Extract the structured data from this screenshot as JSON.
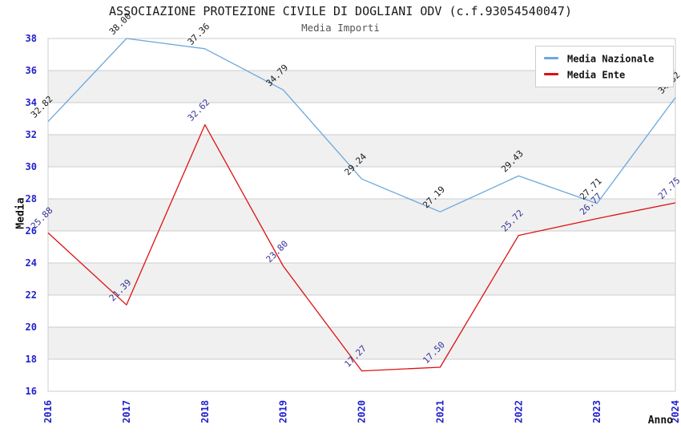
{
  "title": "ASSOCIAZIONE PROTEZIONE CIVILE DI DOGLIANI ODV (c.f.93054540047)",
  "subtitle": "Media Importi",
  "chart_data": {
    "type": "line",
    "x": [
      2016,
      2017,
      2018,
      2019,
      2020,
      2021,
      2022,
      2023,
      2024
    ],
    "series": [
      {
        "name": "Media Nazionale",
        "color": "#6ba8dd",
        "label_color": "#1a1a1a",
        "values": [
          32.82,
          38.0,
          37.36,
          34.79,
          29.24,
          27.19,
          29.43,
          27.71,
          34.32
        ],
        "labels": [
          "32.82",
          "38.00",
          "37.36",
          "34.79",
          "29.24",
          "27.19",
          "29.43",
          "27.71",
          "34.32"
        ]
      },
      {
        "name": "Media Ente",
        "color": "#dd1111",
        "label_color": "#333399",
        "values": [
          25.88,
          21.39,
          32.62,
          23.8,
          17.27,
          17.5,
          25.72,
          26.77,
          27.75
        ],
        "labels": [
          "25.88",
          "21.39",
          "32.62",
          "23.80",
          "17.27",
          "17.50",
          "25.72",
          "26.77",
          "27.75"
        ]
      }
    ],
    "xlabel": "Anno",
    "ylabel": "Media",
    "ylim": [
      16,
      38
    ],
    "ytick_step": 2,
    "grid": "horizontal",
    "legend_position": "top-right",
    "grid_color": "#cccccc",
    "band_color": "#f0f0f0",
    "tick_color": "#2222cc",
    "border_color": "#cccccc"
  }
}
